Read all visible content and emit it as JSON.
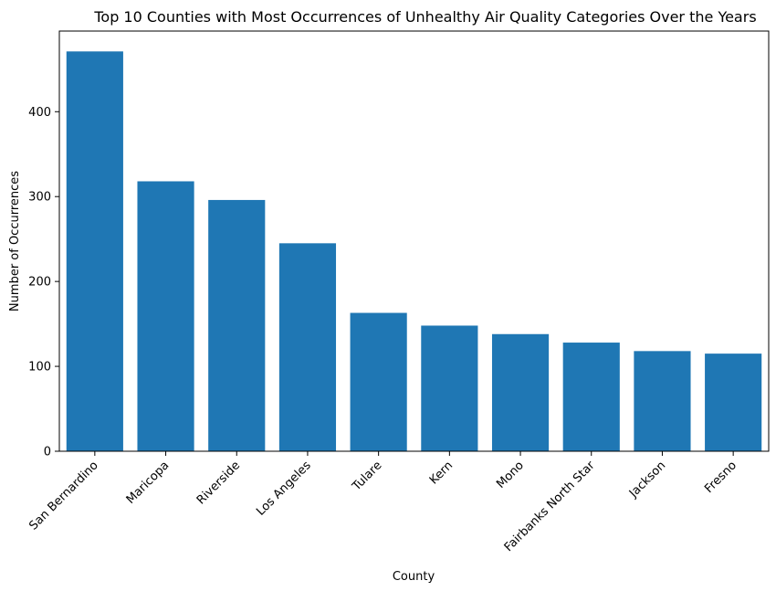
{
  "chart_data": {
    "type": "bar",
    "title": "Top 10 Counties with Most Occurrences of Unhealthy Air Quality Categories Over the Years",
    "xlabel": "County",
    "ylabel": "Number of Occurrences",
    "categories": [
      "San Bernardino",
      "Maricopa",
      "Riverside",
      "Los Angeles",
      "Tulare",
      "Kern",
      "Mono",
      "Fairbanks North Star",
      "Jackson",
      "Fresno"
    ],
    "values": [
      471,
      318,
      296,
      245,
      163,
      148,
      138,
      128,
      118,
      115
    ],
    "ylim": [
      0,
      495
    ],
    "yticks": [
      0,
      100,
      200,
      300,
      400
    ],
    "bar_color": "#1f77b4",
    "grid": false,
    "legend": "none"
  }
}
